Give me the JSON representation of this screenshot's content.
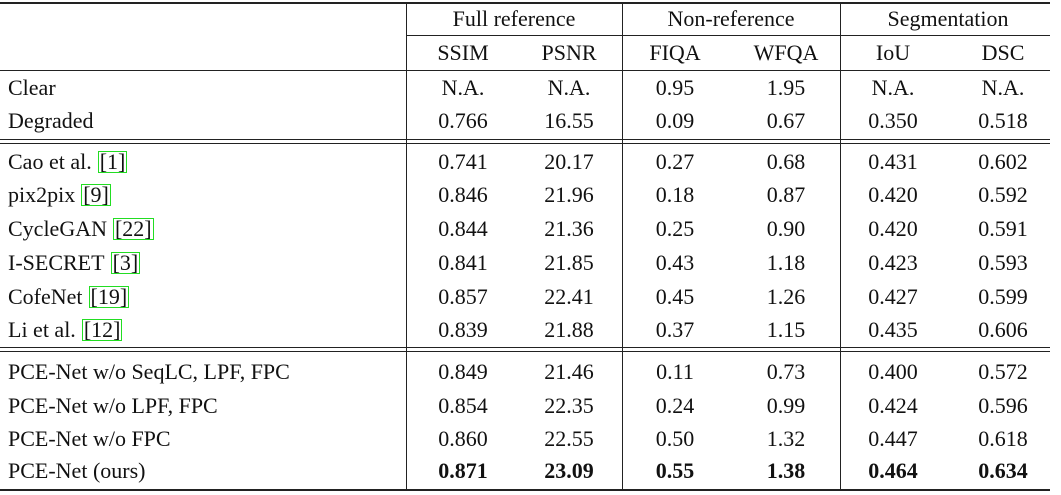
{
  "table": {
    "groups": [
      "Full reference",
      "Non-reference",
      "Segmentation"
    ],
    "columns": [
      "SSIM",
      "PSNR",
      "FIQA",
      "WFQA",
      "IoU",
      "DSC"
    ],
    "sections": [
      [
        {
          "method": "Clear",
          "values": [
            "N.A.",
            "N.A.",
            "0.95",
            "1.95",
            "N.A.",
            "N.A."
          ]
        },
        {
          "method": "Degraded",
          "values": [
            "0.766",
            "16.55",
            "0.09",
            "0.67",
            "0.350",
            "0.518"
          ]
        }
      ],
      [
        {
          "method": "Cao et al.",
          "ref": "[1]",
          "values": [
            "0.741",
            "20.17",
            "0.27",
            "0.68",
            "0.431",
            "0.602"
          ]
        },
        {
          "method": "pix2pix",
          "ref": "[9]",
          "values": [
            "0.846",
            "21.96",
            "0.18",
            "0.87",
            "0.420",
            "0.592"
          ]
        },
        {
          "method": "CycleGAN",
          "ref": "[22]",
          "values": [
            "0.844",
            "21.36",
            "0.25",
            "0.90",
            "0.420",
            "0.591"
          ]
        },
        {
          "method": "I-SECRET",
          "ref": "[3]",
          "values": [
            "0.841",
            "21.85",
            "0.43",
            "1.18",
            "0.423",
            "0.593"
          ]
        },
        {
          "method": "CofeNet",
          "ref": "[19]",
          "values": [
            "0.857",
            "22.41",
            "0.45",
            "1.26",
            "0.427",
            "0.599"
          ]
        },
        {
          "method": "Li et al.",
          "ref": "[12]",
          "values": [
            "0.839",
            "21.88",
            "0.37",
            "1.15",
            "0.435",
            "0.606"
          ]
        }
      ],
      [
        {
          "method": "PCE-Net w/o SeqLC, LPF, FPC",
          "values": [
            "0.849",
            "21.46",
            "0.11",
            "0.73",
            "0.400",
            "0.572"
          ]
        },
        {
          "method": "PCE-Net w/o LPF, FPC",
          "values": [
            "0.854",
            "22.35",
            "0.24",
            "0.99",
            "0.424",
            "0.596"
          ]
        },
        {
          "method": "PCE-Net w/o FPC",
          "values": [
            "0.860",
            "22.55",
            "0.50",
            "1.32",
            "0.447",
            "0.618"
          ]
        },
        {
          "method": "PCE-Net (ours)",
          "values": [
            "0.871",
            "23.09",
            "0.55",
            "1.38",
            "0.464",
            "0.634"
          ]
        }
      ]
    ]
  }
}
